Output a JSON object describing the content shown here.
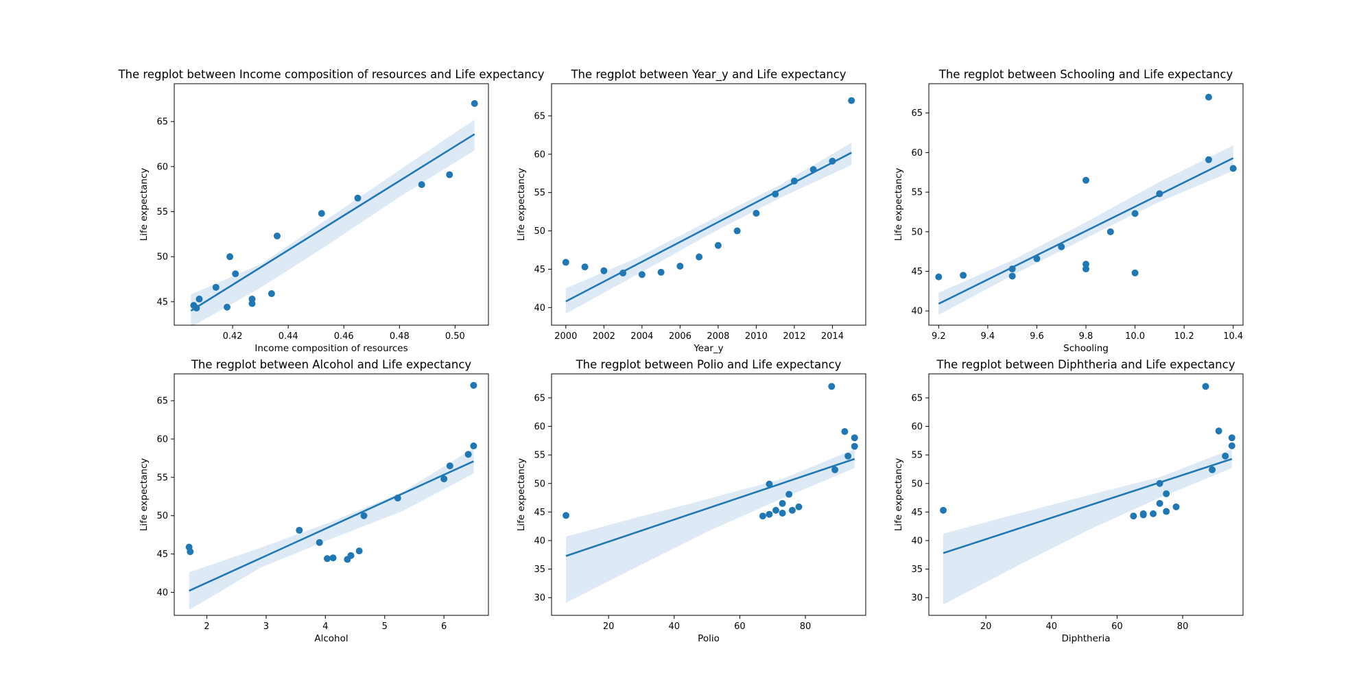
{
  "figure": {
    "accent_color": "#1f77b4",
    "band_color": "#c6dbef"
  },
  "chart_data": [
    {
      "type": "scatter",
      "title": "The regplot between Income composition of resources and Life expectancy",
      "xlabel": "Income composition of resources",
      "ylabel": "Life expectancy",
      "xlim": [
        0.399,
        0.512
      ],
      "ylim": [
        42.4,
        69.2
      ],
      "xticks": [
        0.42,
        0.44,
        0.46,
        0.48,
        0.5
      ],
      "xtick_labels": [
        "0.42",
        "0.44",
        "0.46",
        "0.48",
        "0.50"
      ],
      "yticks": [
        45,
        50,
        55,
        60,
        65
      ],
      "ytick_labels": [
        "45",
        "50",
        "55",
        "60",
        "65"
      ],
      "points": [
        [
          0.406,
          44.6
        ],
        [
          0.407,
          44.3
        ],
        [
          0.408,
          45.3
        ],
        [
          0.414,
          46.6
        ],
        [
          0.418,
          44.4
        ],
        [
          0.419,
          50.0
        ],
        [
          0.421,
          48.1
        ],
        [
          0.427,
          44.8
        ],
        [
          0.427,
          45.3
        ],
        [
          0.434,
          45.9
        ],
        [
          0.436,
          52.3
        ],
        [
          0.452,
          54.8
        ],
        [
          0.465,
          56.5
        ],
        [
          0.488,
          58.0
        ],
        [
          0.498,
          59.1
        ],
        [
          0.507,
          67.0
        ]
      ],
      "fit": {
        "x": [
          0.405,
          0.507
        ],
        "y": [
          44.0,
          63.6
        ]
      },
      "band": {
        "x": [
          0.405,
          0.4303,
          0.4556,
          0.4809,
          0.507
        ],
        "upper": [
          45.8,
          49.2,
          54.5,
          59.8,
          65.2
        ],
        "lower": [
          42.2,
          46.6,
          51.6,
          56.8,
          61.8
        ]
      }
    },
    {
      "type": "scatter",
      "title": "The regplot between Year_y and Life expectancy",
      "xlabel": "Year_y",
      "ylabel": "Life expectancy",
      "xlim": [
        1999.25,
        2015.75
      ],
      "ylim": [
        37.7,
        69.2
      ],
      "xticks": [
        2000,
        2002,
        2004,
        2006,
        2008,
        2010,
        2012,
        2014
      ],
      "xtick_labels": [
        "2000",
        "2002",
        "2004",
        "2006",
        "2008",
        "2010",
        "2012",
        "2014"
      ],
      "yticks": [
        40,
        45,
        50,
        55,
        60,
        65
      ],
      "ytick_labels": [
        "40",
        "45",
        "50",
        "55",
        "60",
        "65"
      ],
      "points": [
        [
          2000,
          45.9
        ],
        [
          2001,
          45.3
        ],
        [
          2002,
          44.8
        ],
        [
          2003,
          44.5
        ],
        [
          2004,
          44.3
        ],
        [
          2005,
          44.6
        ],
        [
          2006,
          45.4
        ],
        [
          2007,
          46.6
        ],
        [
          2008,
          48.1
        ],
        [
          2009,
          50.0
        ],
        [
          2010,
          52.3
        ],
        [
          2011,
          54.8
        ],
        [
          2012,
          56.5
        ],
        [
          2013,
          58.0
        ],
        [
          2014,
          59.1
        ],
        [
          2015,
          67.0
        ]
      ],
      "fit": {
        "x": [
          2000,
          2015
        ],
        "y": [
          40.8,
          60.2
        ]
      },
      "band": {
        "x": [
          2000,
          2003.75,
          2007.5,
          2011.25,
          2015
        ],
        "upper": [
          42.5,
          46.5,
          51.3,
          56.0,
          61.5
        ],
        "lower": [
          39.2,
          44.3,
          49.5,
          54.3,
          58.6
        ]
      }
    },
    {
      "type": "scatter",
      "title": "The regplot between Schooling and Life expectancy",
      "xlabel": "Schooling",
      "ylabel": "Life expectancy",
      "xlim": [
        9.16,
        10.44
      ],
      "ylim": [
        38.2,
        68.7
      ],
      "xticks": [
        9.2,
        9.4,
        9.6,
        9.8,
        10.0,
        10.2,
        10.4
      ],
      "xtick_labels": [
        "9.2",
        "9.4",
        "9.6",
        "9.8",
        "10.0",
        "10.2",
        "10.4"
      ],
      "yticks": [
        40,
        45,
        50,
        55,
        60,
        65
      ],
      "ytick_labels": [
        "40",
        "45",
        "50",
        "55",
        "60",
        "65"
      ],
      "points": [
        [
          9.2,
          44.3
        ],
        [
          9.3,
          44.5
        ],
        [
          9.5,
          44.4
        ],
        [
          9.5,
          45.3
        ],
        [
          9.6,
          46.6
        ],
        [
          9.7,
          48.1
        ],
        [
          9.8,
          45.3
        ],
        [
          9.8,
          45.9
        ],
        [
          9.8,
          56.5
        ],
        [
          9.9,
          50.0
        ],
        [
          10.0,
          44.8
        ],
        [
          10.0,
          52.3
        ],
        [
          10.1,
          54.8
        ],
        [
          10.3,
          59.1
        ],
        [
          10.3,
          67.0
        ],
        [
          10.4,
          58.0
        ]
      ],
      "fit": {
        "x": [
          9.2,
          10.4
        ],
        "y": [
          40.9,
          59.3
        ]
      },
      "band": {
        "x": [
          9.2,
          9.5,
          9.8,
          10.1,
          10.4
        ],
        "upper": [
          42.3,
          46.4,
          51.2,
          56.3,
          60.9
        ],
        "lower": [
          39.5,
          44.5,
          49.2,
          53.8,
          57.7
        ]
      }
    },
    {
      "type": "scatter",
      "title": "The regplot between Alcohol and Life expectancy",
      "xlabel": "Alcohol",
      "ylabel": "Life expectancy",
      "xlim": [
        1.45,
        6.75
      ],
      "ylim": [
        37.0,
        68.5
      ],
      "xticks": [
        2,
        3,
        4,
        5,
        6
      ],
      "xtick_labels": [
        "2",
        "3",
        "4",
        "5",
        "6"
      ],
      "yticks": [
        40,
        45,
        50,
        55,
        60,
        65
      ],
      "ytick_labels": [
        "40",
        "45",
        "50",
        "55",
        "60",
        "65"
      ],
      "points": [
        [
          1.7,
          45.9
        ],
        [
          1.72,
          45.3
        ],
        [
          3.56,
          48.1
        ],
        [
          3.9,
          46.5
        ],
        [
          4.03,
          44.4
        ],
        [
          4.13,
          44.5
        ],
        [
          4.37,
          44.3
        ],
        [
          4.43,
          44.8
        ],
        [
          4.57,
          45.4
        ],
        [
          4.65,
          50.0
        ],
        [
          5.22,
          52.3
        ],
        [
          6.0,
          54.8
        ],
        [
          6.1,
          56.5
        ],
        [
          6.41,
          58.0
        ],
        [
          6.5,
          59.1
        ],
        [
          6.5,
          67.0
        ]
      ],
      "fit": {
        "x": [
          1.7,
          6.5
        ],
        "y": [
          40.2,
          57.1
        ]
      },
      "band": {
        "x": [
          1.7,
          2.9,
          4.1,
          5.3,
          6.5
        ],
        "upper": [
          42.6,
          45.8,
          49.2,
          53.1,
          58.8
        ],
        "lower": [
          37.7,
          43.2,
          47.0,
          50.6,
          55.5
        ]
      }
    },
    {
      "type": "scatter",
      "title": "The regplot between Polio and Life expectancy",
      "xlabel": "Polio",
      "ylabel": "Life expectancy",
      "xlim": [
        2.6,
        98.4
      ],
      "ylim": [
        26.9,
        69.2
      ],
      "xticks": [
        20,
        40,
        60,
        80
      ],
      "xtick_labels": [
        "20",
        "40",
        "60",
        "80"
      ],
      "yticks": [
        30,
        35,
        40,
        45,
        50,
        55,
        60,
        65
      ],
      "ytick_labels": [
        "30",
        "35",
        "40",
        "45",
        "50",
        "55",
        "60",
        "65"
      ],
      "points": [
        [
          7,
          44.4
        ],
        [
          67,
          44.3
        ],
        [
          69,
          49.9
        ],
        [
          69,
          44.6
        ],
        [
          71,
          45.3
        ],
        [
          73,
          46.5
        ],
        [
          73,
          44.8
        ],
        [
          75,
          48.1
        ],
        [
          76,
          45.3
        ],
        [
          78,
          45.9
        ],
        [
          88,
          67.0
        ],
        [
          89,
          52.4
        ],
        [
          92,
          59.1
        ],
        [
          93,
          54.8
        ],
        [
          95,
          58.0
        ],
        [
          95,
          56.5
        ]
      ],
      "fit": {
        "x": [
          7,
          95
        ],
        "y": [
          37.3,
          54.3
        ]
      },
      "band": {
        "x": [
          7,
          29,
          51,
          73,
          95
        ],
        "upper": [
          40.7,
          44.1,
          47.4,
          50.8,
          56.0
        ],
        "lower": [
          29.1,
          35.5,
          41.8,
          47.4,
          52.7
        ]
      }
    },
    {
      "type": "scatter",
      "title": "The regplot between Diphtheria  and Life expectancy",
      "xlabel": "Diphtheria",
      "ylabel": "Life expectancy",
      "xlim": [
        2.6,
        98.4
      ],
      "ylim": [
        26.9,
        69.2
      ],
      "xticks": [
        20,
        40,
        60,
        80
      ],
      "xtick_labels": [
        "20",
        "40",
        "60",
        "80"
      ],
      "yticks": [
        30,
        35,
        40,
        45,
        50,
        55,
        60,
        65
      ],
      "ytick_labels": [
        "30",
        "35",
        "40",
        "45",
        "50",
        "55",
        "60",
        "65"
      ],
      "points": [
        [
          7,
          45.3
        ],
        [
          65,
          44.3
        ],
        [
          68,
          44.5
        ],
        [
          68,
          44.7
        ],
        [
          71,
          44.7
        ],
        [
          73,
          50.0
        ],
        [
          73,
          46.5
        ],
        [
          75,
          48.2
        ],
        [
          75,
          45.1
        ],
        [
          78,
          45.9
        ],
        [
          87,
          67.0
        ],
        [
          89,
          52.4
        ],
        [
          91,
          59.2
        ],
        [
          93,
          54.8
        ],
        [
          95,
          58.0
        ],
        [
          95,
          56.6
        ]
      ],
      "fit": {
        "x": [
          7,
          95
        ],
        "y": [
          37.8,
          54.3
        ]
      },
      "band": {
        "x": [
          7,
          29,
          51,
          73,
          95
        ],
        "upper": [
          41.2,
          44.6,
          47.9,
          51.1,
          56.0
        ],
        "lower": [
          28.8,
          35.4,
          41.8,
          47.5,
          52.7
        ]
      }
    }
  ]
}
